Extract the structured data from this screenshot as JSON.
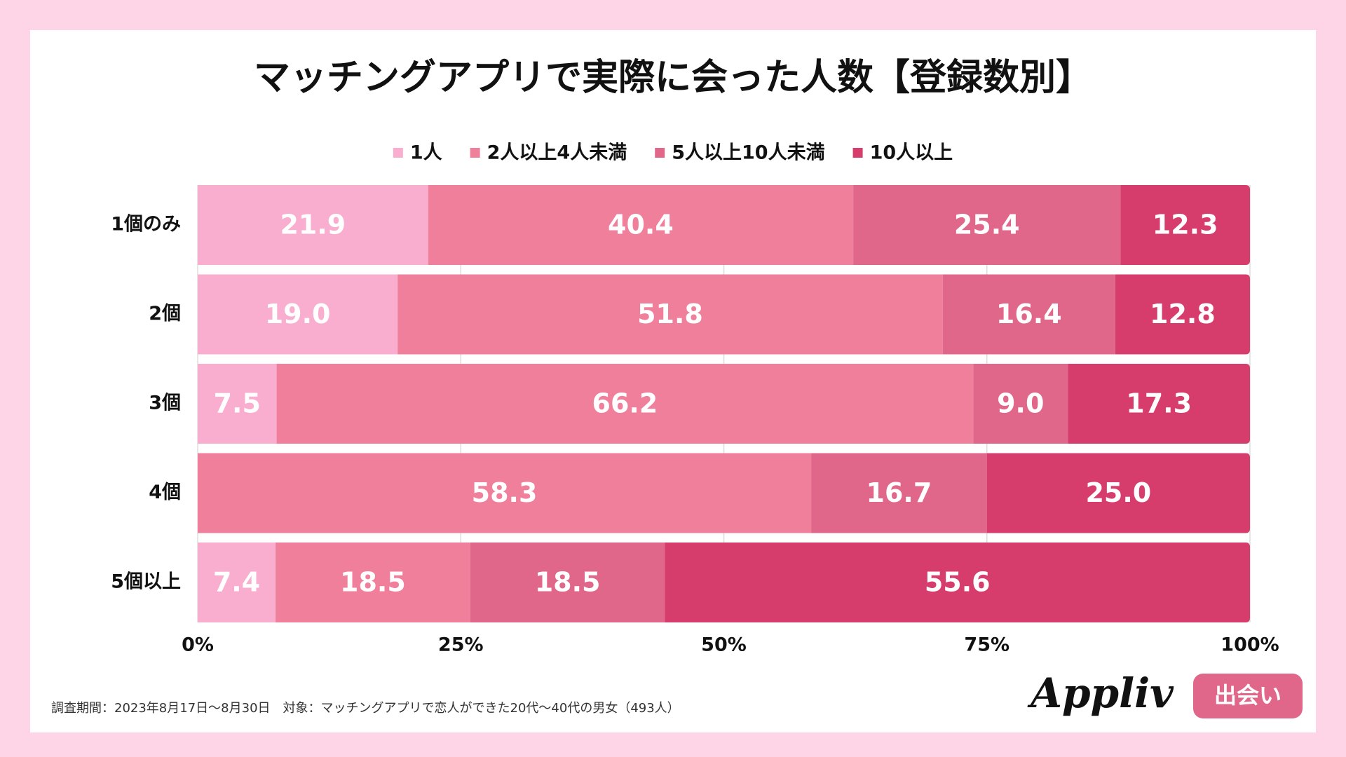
{
  "chart_data": {
    "type": "stacked-bar-horizontal",
    "title": "マッチングアプリで実際に会った人数【登録数別】",
    "categories": [
      "1個のみ",
      "2個",
      "3個",
      "4個",
      "5個以上"
    ],
    "series": [
      {
        "name": "1人",
        "color": "#f9aed0",
        "values": [
          21.9,
          19.0,
          7.5,
          0,
          7.4
        ],
        "value_labels": [
          "21.9",
          "19.0",
          "7.5",
          null,
          "7.4"
        ]
      },
      {
        "name": "2人以上4人未満",
        "color": "#ef7f9a",
        "values": [
          40.4,
          51.8,
          66.2,
          58.3,
          18.5
        ],
        "value_labels": [
          "40.4",
          "51.8",
          "66.2",
          "58.3",
          "18.5"
        ]
      },
      {
        "name": "5人以上10人未満",
        "color": "#e0668a",
        "values": [
          25.4,
          16.4,
          9.0,
          16.7,
          18.5
        ],
        "value_labels": [
          "25.4",
          "16.4",
          "9.0",
          "16.7",
          "18.5"
        ]
      },
      {
        "name": "10人以上",
        "color": "#d63d6c",
        "values": [
          12.3,
          12.8,
          17.3,
          25.0,
          55.6
        ],
        "value_labels": [
          "12.3",
          "12.8",
          "17.3",
          "25.0",
          "55.6"
        ]
      }
    ],
    "xlim": [
      0,
      100
    ],
    "xticks": [
      {
        "value": 0,
        "label": "0%"
      },
      {
        "value": 25,
        "label": "25%"
      },
      {
        "value": 50,
        "label": "50%"
      },
      {
        "value": 75,
        "label": "75%"
      },
      {
        "value": 100,
        "label": "100%"
      }
    ],
    "grid": true,
    "footnote": "調査期間：2023年8月17日〜8月30日　対象：マッチングアプリで恋人ができた20代〜40代の男女（493人）",
    "brand": "Appliv",
    "badge": "出会い"
  }
}
